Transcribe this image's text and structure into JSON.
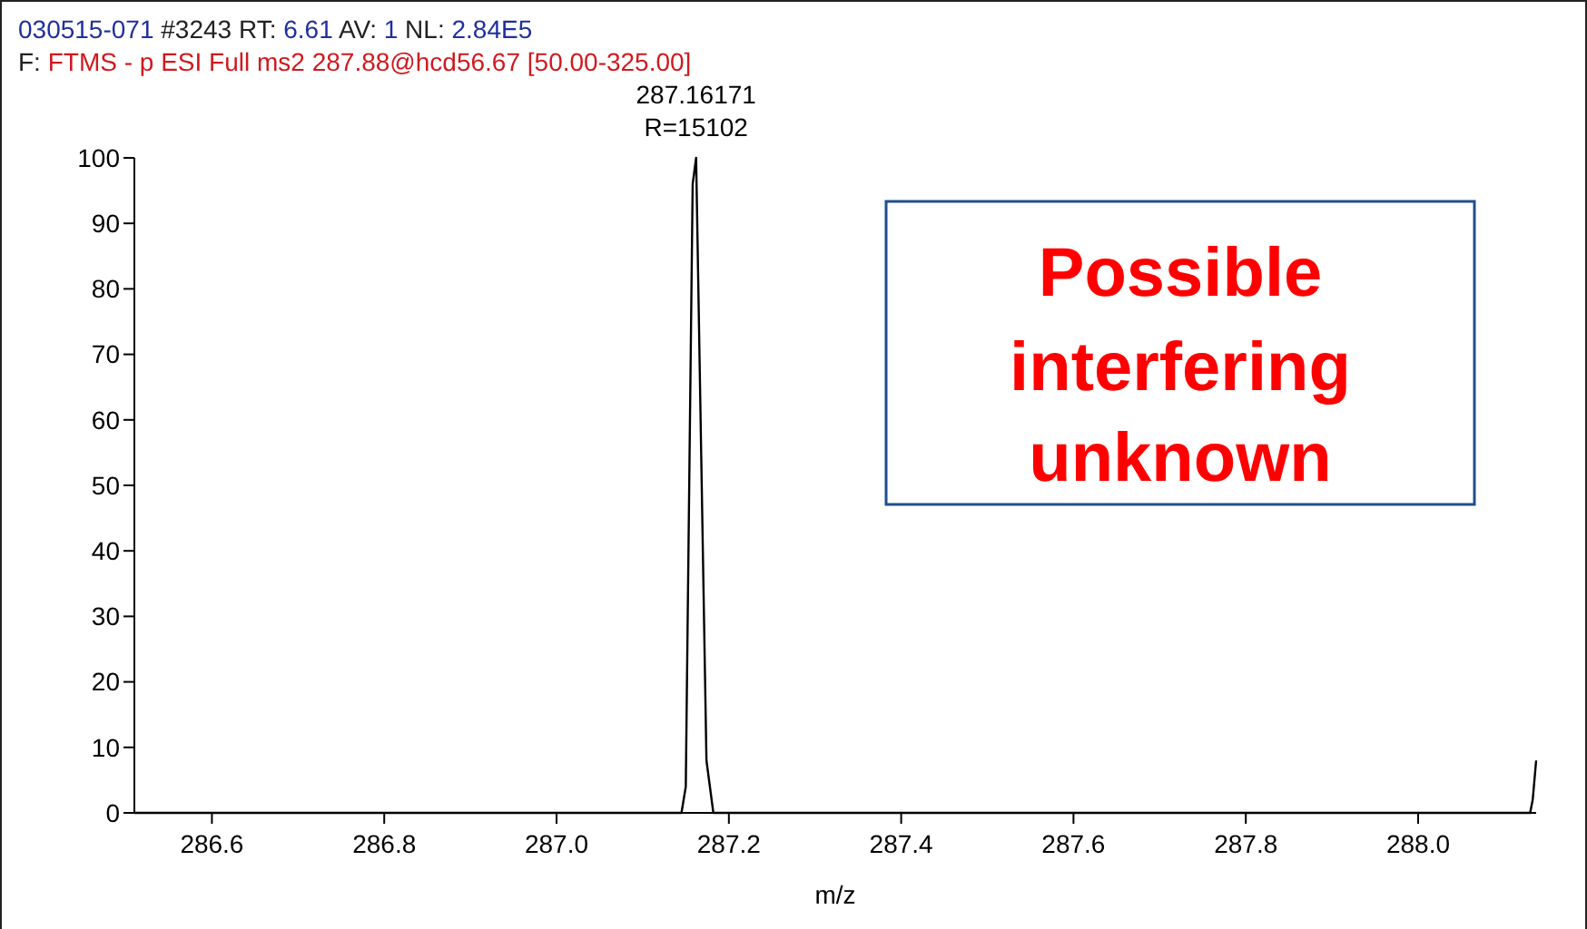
{
  "chart_data": {
    "type": "line",
    "xlabel": "m/z",
    "x": [
      286.51,
      287.145,
      287.15,
      287.158,
      287.162,
      287.174,
      287.182,
      288.13,
      288.133,
      288.137
    ],
    "series": [
      {
        "color": "#000000",
        "values": [
          0,
          0,
          4,
          96,
          100,
          8,
          0,
          0,
          2,
          8
        ]
      }
    ],
    "xlim": [
      286.51,
      288.137
    ],
    "xticks": [
      286.6,
      286.8,
      {
        "value": 287,
        "label": "287.0"
      },
      287.2,
      287.4,
      287.6,
      287.8,
      {
        "value": 288,
        "label": "288.0"
      }
    ],
    "ylim": [
      0,
      100
    ],
    "yticks": [
      0,
      10,
      20,
      30,
      40,
      50,
      60,
      70,
      80,
      90,
      100
    ],
    "grid": false,
    "marker": "none",
    "line_style": "solid",
    "annotations": [
      "030515-071 #3243 RT: 6.61 AV: 1 NL: 2.84E5",
      "F: FTMS - p ESI Full ms2 287.88@hcd56.67 [50.00-325.00]",
      {
        "text": "287.16171",
        "x": 287.162,
        "y": 100
      },
      {
        "text": "R=15102",
        "x": 287.162,
        "y": 100
      },
      "Possible interfering unknown"
    ]
  }
}
